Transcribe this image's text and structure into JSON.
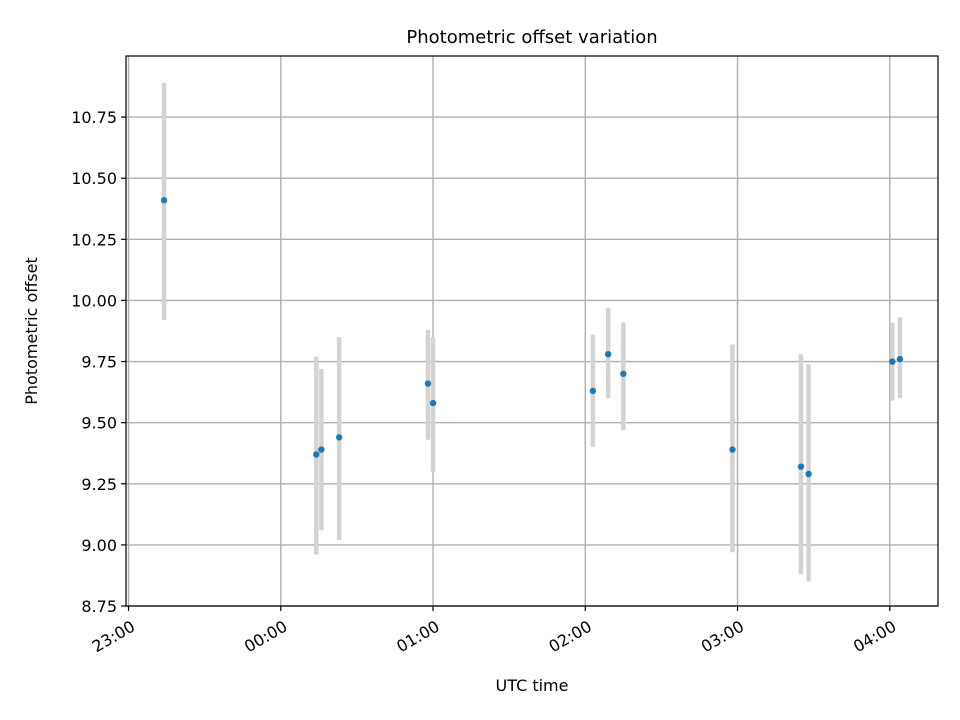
{
  "chart_data": {
    "type": "scatter",
    "title": "Photometric offset variation",
    "xlabel": "UTC time",
    "ylabel": "Photometric offset",
    "x_tick_labels": [
      "23:00",
      "00:00",
      "01:00",
      "02:00",
      "03:00",
      "04:00"
    ],
    "y_tick_labels": [
      "8.75",
      "9.00",
      "9.25",
      "9.50",
      "9.75",
      "10.00",
      "10.25",
      "10.50",
      "10.75"
    ],
    "ylim": [
      8.75,
      11.0
    ],
    "xlim": [
      "22:59",
      "04:19"
    ],
    "grid": true,
    "errorbar_color": "#d3d3d3",
    "point_color": "#1f77b4",
    "points": [
      {
        "x": "23:14",
        "y": 10.41,
        "yerr_low": 9.92,
        "yerr_high": 10.89
      },
      {
        "x": "00:14",
        "y": 9.37,
        "yerr_low": 8.96,
        "yerr_high": 9.77
      },
      {
        "x": "00:16",
        "y": 9.39,
        "yerr_low": 9.06,
        "yerr_high": 9.72
      },
      {
        "x": "00:23",
        "y": 9.44,
        "yerr_low": 9.02,
        "yerr_high": 9.85
      },
      {
        "x": "00:58",
        "y": 9.66,
        "yerr_low": 9.43,
        "yerr_high": 9.88
      },
      {
        "x": "01:00",
        "y": 9.58,
        "yerr_low": 9.3,
        "yerr_high": 9.85
      },
      {
        "x": "02:03",
        "y": 9.63,
        "yerr_low": 9.4,
        "yerr_high": 9.86
      },
      {
        "x": "02:09",
        "y": 9.78,
        "yerr_low": 9.6,
        "yerr_high": 9.97
      },
      {
        "x": "02:15",
        "y": 9.7,
        "yerr_low": 9.47,
        "yerr_high": 9.91
      },
      {
        "x": "02:58",
        "y": 9.39,
        "yerr_low": 8.97,
        "yerr_high": 9.82
      },
      {
        "x": "03:25",
        "y": 9.32,
        "yerr_low": 8.88,
        "yerr_high": 9.78
      },
      {
        "x": "03:28",
        "y": 9.29,
        "yerr_low": 8.85,
        "yerr_high": 9.74
      },
      {
        "x": "04:01",
        "y": 9.75,
        "yerr_low": 9.59,
        "yerr_high": 9.91
      },
      {
        "x": "04:04",
        "y": 9.76,
        "yerr_low": 9.6,
        "yerr_high": 9.93
      }
    ]
  }
}
